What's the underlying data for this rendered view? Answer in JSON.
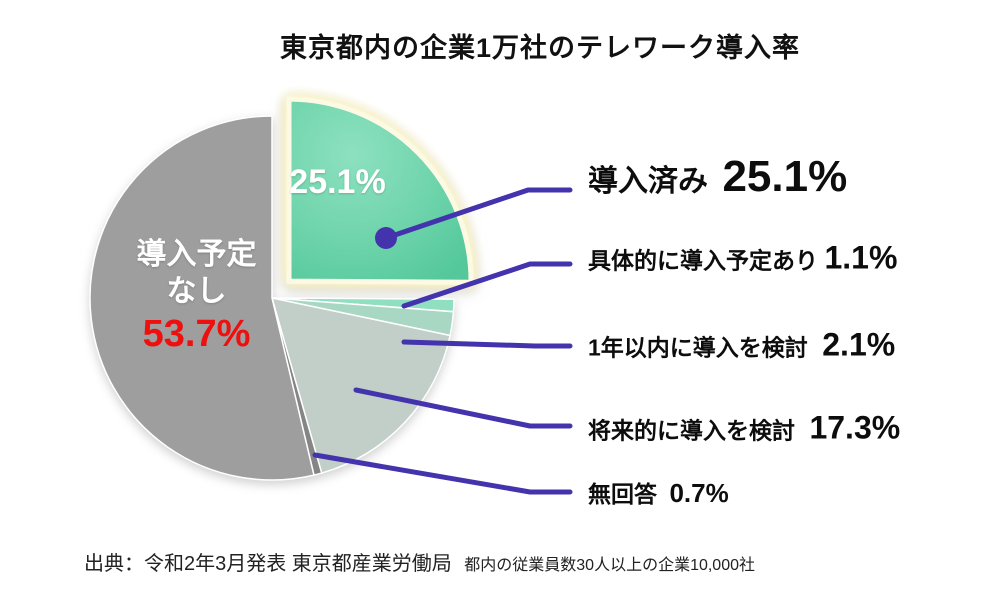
{
  "title": "東京都内の企業1万社のテレワーク導入率",
  "chart_data": {
    "type": "pie",
    "title": "東京都内の企業1万社のテレワーク導入率",
    "unit": "%",
    "start_angle_deg": -90,
    "direction": "clockwise",
    "slices": [
      {
        "label": "導入済み",
        "value": 25.1,
        "color": "#63d0a7",
        "exploded": true
      },
      {
        "label": "具体的に導入予定あり",
        "value": 1.1,
        "color": "#8fdfc0",
        "exploded": false
      },
      {
        "label": "1年以内に導入を検討",
        "value": 2.1,
        "color": "#a8d8c4",
        "exploded": false
      },
      {
        "label": "将来的に導入を検討",
        "value": 17.3,
        "color": "#c2cec8",
        "exploded": false
      },
      {
        "label": "無回答",
        "value": 0.7,
        "color": "#858585",
        "exploded": false
      },
      {
        "label": "導入予定なし",
        "value": 53.7,
        "color": "#9e9e9e",
        "exploded": false
      }
    ]
  },
  "pie_inner_labels": {
    "introduced_pct": "25.1%",
    "no_plan_line1": "導入予定",
    "no_plan_line2": "なし",
    "no_plan_pct": "53.7%"
  },
  "legend": [
    {
      "label": "導入済み",
      "pct": "25.1%"
    },
    {
      "label": "具体的に導入予定あり",
      "pct": "1.1%"
    },
    {
      "label": "1年以内に導入を検討",
      "pct": "2.1%"
    },
    {
      "label": "将来的に導入を検討",
      "pct": "17.3%"
    },
    {
      "label": "無回答",
      "pct": "0.7%"
    }
  ],
  "source": {
    "main": "出典：令和2年3月発表 東京都産業労働局",
    "sub": "都内の従業員数30人以上の企業10,000社"
  },
  "colors": {
    "connector": "#4333ad",
    "highlight_pct_red": "#ee0f0f",
    "inner_label_white": "#ffffff"
  }
}
